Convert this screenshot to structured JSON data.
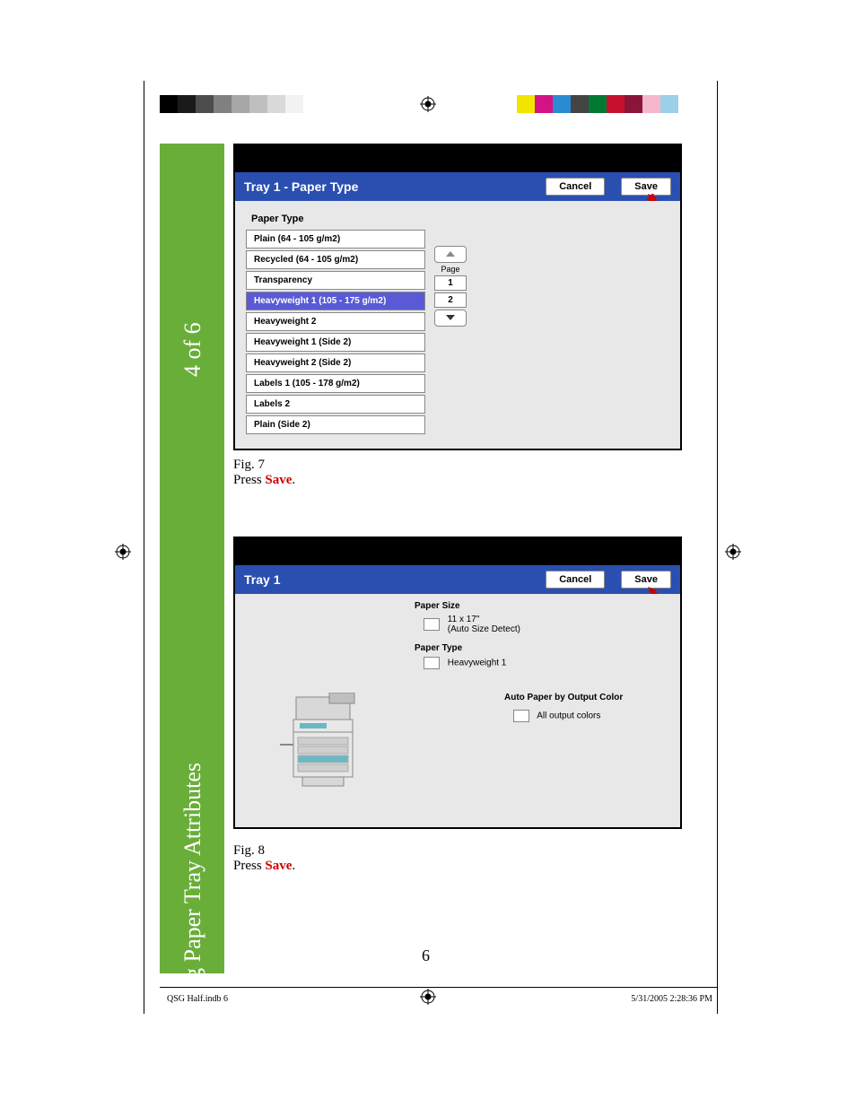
{
  "reg_bar_left": [
    "#000000",
    "#1a1a1a",
    "#4d4d4d",
    "#808080",
    "#a6a6a6",
    "#bfbfbf",
    "#d9d9d9",
    "#f2f2f2",
    "#ffffff"
  ],
  "reg_bar_right": [
    "#f2e600",
    "#d41283",
    "#2a8bd4",
    "#444444",
    "#007a33",
    "#c8102e",
    "#8a1538",
    "#f5b6cd",
    "#9bd0e8",
    "#ffffff"
  ],
  "sidebar": {
    "top": "4 of 6",
    "bottom": "Changing Paper Tray Attributes",
    "bg": "#6aae3a"
  },
  "fig7": {
    "title": "Tray 1 - Paper Type",
    "cancel": "Cancel",
    "save": "Save",
    "section_label": "Paper Type",
    "items": [
      "Plain (64 - 105 g/m2)",
      "Recycled (64 - 105 g/m2)",
      "Transparency",
      "Heavyweight 1 (105 - 175 g/m2)",
      "Heavyweight 2",
      "Heavyweight 1 (Side 2)",
      "Heavyweight 2 (Side 2)",
      "Labels 1 (105 - 178 g/m2)",
      "Labels 2",
      "Plain (Side 2)"
    ],
    "selected_index": 3,
    "pager": {
      "label": "Page",
      "p1": "1",
      "p2": "2"
    },
    "caption_fig": "Fig. 7",
    "caption_press": "Press ",
    "caption_save": "Save",
    "caption_period": "."
  },
  "fig8": {
    "title": "Tray 1",
    "cancel": "Cancel",
    "save": "Save",
    "paper_size_label": "Paper Size",
    "paper_size_line1": "11 x 17\"",
    "paper_size_line2": "(Auto Size Detect)",
    "paper_type_label": "Paper Type",
    "paper_type_value": "Heavyweight 1",
    "auto_label": "Auto Paper by Output Color",
    "auto_value": "All output colors",
    "caption_fig": "Fig. 8",
    "caption_press": "Press ",
    "caption_save": "Save",
    "caption_period": "."
  },
  "page_number": "6",
  "footer_left": "QSG Half.indb   6",
  "footer_right": "5/31/2005   2:28:36 PM",
  "highlight_color": "#5a5ad6",
  "header_blue": "#2a4fb0",
  "arrow_color": "#cc0000"
}
